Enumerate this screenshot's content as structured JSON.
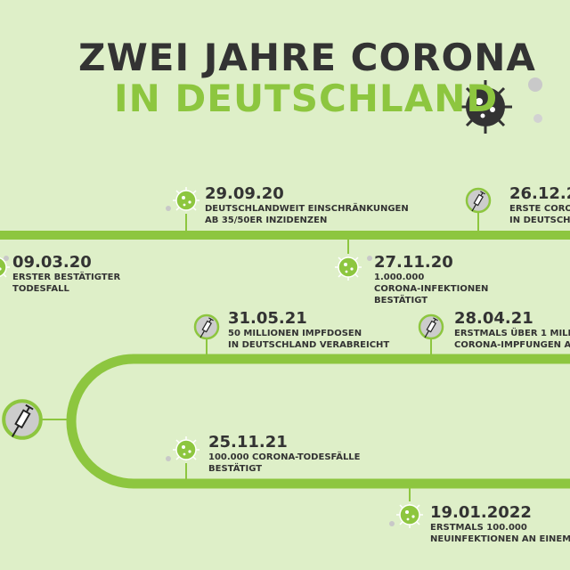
{
  "title": {
    "line1": "ZWEI JAHRE CORONA",
    "line2": "IN DEUTSCHLAND"
  },
  "colors": {
    "background": "#deefc8",
    "accent": "#8dc63f",
    "text": "#333333",
    "icon_bg": "#cccccc"
  },
  "events": [
    {
      "date": "29.09.20",
      "lines": [
        "DEUTSCHLANDWEIT EINSCHRÄNKUNGEN",
        "AB 35/50ER INZIDENZEN"
      ],
      "icon": "virus-icon"
    },
    {
      "date": "26.12.2",
      "lines": [
        "ERSTE CORO",
        "IN DEUTSCH"
      ],
      "icon": "syringe-icon"
    },
    {
      "date": "09.03.20",
      "lines": [
        "ERSTER BESTÄTIGTER",
        "TODESFALL"
      ],
      "icon": "virus-icon"
    },
    {
      "date": "27.11.20",
      "lines": [
        "1.000.000",
        "CORONA-INFEKTIONEN",
        "BESTÄTIGT"
      ],
      "icon": "virus-icon"
    },
    {
      "date": "31.05.21",
      "lines": [
        "50 MILLIONEN IMPFDOSEN",
        "IN DEUTSCHLAND VERABREICHT"
      ],
      "icon": "syringe-icon"
    },
    {
      "date": "28.04.21",
      "lines": [
        "ERSTMALS ÜBER 1 MILLI",
        "CORONA-IMPFUNGEN AN"
      ],
      "icon": "syringe-icon"
    },
    {
      "date": "25.11.21",
      "lines": [
        "100.000 CORONA-TODESFÄLLE",
        "BESTÄTIGT"
      ],
      "icon": "virus-icon"
    },
    {
      "date": "19.01.2022",
      "lines": [
        "ERSTMALS 100.000",
        "NEUINFEKTIONEN AN EINEM"
      ],
      "icon": "virus-icon"
    }
  ]
}
